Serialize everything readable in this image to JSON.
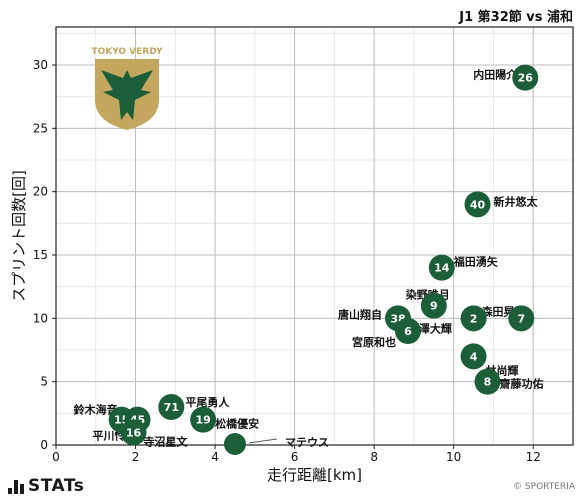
{
  "header": {
    "title": "J1 第32節 vs 浦和"
  },
  "branding": {
    "logo_text": "STATs",
    "copyright": "© SPORTERIA",
    "team_logo_text": "TOKYO VERDY"
  },
  "colors": {
    "marker": "#1b5e38",
    "marker_text": "#ffffff",
    "grid": "#bdbdbd",
    "logo_gold": "#c4a65e",
    "logo_green": "#1b5e38"
  },
  "chart_data": {
    "type": "scatter",
    "xlabel": "走行距離[km]",
    "ylabel": "スプリント回数[回]",
    "xlim": [
      0,
      13
    ],
    "ylim": [
      0,
      33
    ],
    "xticks": [
      0,
      2,
      4,
      6,
      8,
      10,
      12
    ],
    "yticks": [
      0,
      5,
      10,
      15,
      20,
      25,
      30
    ],
    "grid": true,
    "points": [
      {
        "number": "26",
        "name": "内田陽介",
        "x": 11.8,
        "y": 29
      },
      {
        "number": "40",
        "name": "新井悠太",
        "x": 10.6,
        "y": 19
      },
      {
        "number": "14",
        "name": "福田湧矢",
        "x": 9.7,
        "y": 14
      },
      {
        "number": "9",
        "name": "染野唯月",
        "x": 9.5,
        "y": 11
      },
      {
        "number": "2",
        "name": "森田晃樹",
        "x": 10.5,
        "y": 10
      },
      {
        "number": "7",
        "name": "",
        "x": 11.7,
        "y": 10
      },
      {
        "number": "38",
        "name": "唐山翔自",
        "x": 8.6,
        "y": 10
      },
      {
        "number": "6",
        "name": "宮原和也",
        "x": 8.85,
        "y": 9
      },
      {
        "number": "",
        "name": "深澤大輝",
        "x": 9.4,
        "y": 9.5
      },
      {
        "number": "4",
        "name": "林尚輝",
        "x": 10.5,
        "y": 7
      },
      {
        "number": "8",
        "name": "齋藤功佑",
        "x": 10.85,
        "y": 5
      },
      {
        "number": "71",
        "name": "平尾勇人",
        "x": 2.9,
        "y": 3
      },
      {
        "number": "19",
        "name": "松橋優安",
        "x": 3.7,
        "y": 2
      },
      {
        "number": "15",
        "name": "鈴木海音",
        "x": 1.65,
        "y": 2
      },
      {
        "number": "45",
        "name": "",
        "x": 2.05,
        "y": 2
      },
      {
        "number": "16",
        "name": "平川怜",
        "x": 1.95,
        "y": 1
      },
      {
        "number": "",
        "name": "寺沼星文",
        "x": 2.4,
        "y": 0.6
      },
      {
        "number": "",
        "name": "マテウス",
        "x": 4.5,
        "y": 0
      }
    ]
  }
}
